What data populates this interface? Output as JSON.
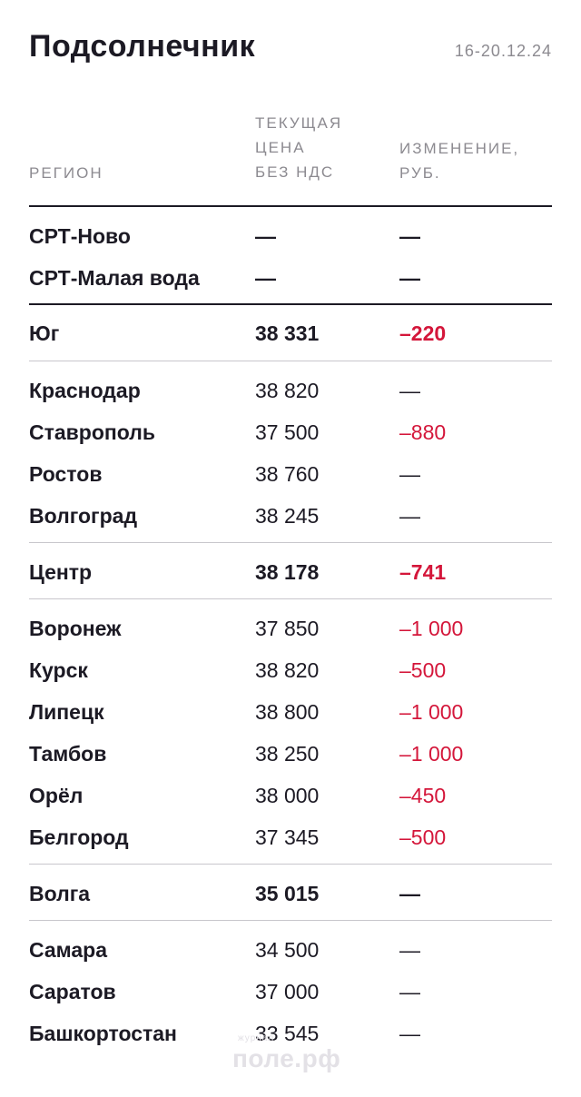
{
  "title": "Подсолнечник",
  "date": "16-20.12.24",
  "headers": {
    "region": "РЕГИОН",
    "price": [
      "ТЕКУЩАЯ",
      "ЦЕНА",
      "БЕЗ НДС"
    ],
    "change": [
      "ИЗМЕНЕНИЕ,",
      "РУБ."
    ]
  },
  "rows": [
    {
      "name": "СРТ-Ново",
      "price": "—",
      "change": "—"
    },
    {
      "name": "СРТ-Малая вода",
      "price": "—",
      "change": "—"
    },
    {
      "name": "Юг",
      "price": "38 331",
      "change": "–220"
    },
    {
      "name": "Краснодар",
      "price": "38 820",
      "change": "—"
    },
    {
      "name": "Ставрополь",
      "price": "37 500",
      "change": "–880"
    },
    {
      "name": "Ростов",
      "price": "38 760",
      "change": "—"
    },
    {
      "name": "Волгоград",
      "price": "38 245",
      "change": "—"
    },
    {
      "name": "Центр",
      "price": "38 178",
      "change": "–741"
    },
    {
      "name": "Воронеж",
      "price": "37 850",
      "change": "–1 000"
    },
    {
      "name": "Курск",
      "price": "38 820",
      "change": "–500"
    },
    {
      "name": "Липецк",
      "price": "38 800",
      "change": "–1 000"
    },
    {
      "name": "Тамбов",
      "price": "38 250",
      "change": "–1 000"
    },
    {
      "name": "Орёл",
      "price": "38 000",
      "change": "–450"
    },
    {
      "name": "Белгород",
      "price": "37 345",
      "change": "–500"
    },
    {
      "name": "Волга",
      "price": "35 015",
      "change": "—"
    },
    {
      "name": "Самара",
      "price": "34 500",
      "change": "—"
    },
    {
      "name": "Саратов",
      "price": "37 000",
      "change": "—"
    },
    {
      "name": "Башкортостан",
      "price": "33 545",
      "change": "—"
    }
  ],
  "watermark": {
    "small": "журнал",
    "main": "поле.рф"
  },
  "colors": {
    "text": "#1c1a24",
    "muted": "#8c8a90",
    "negative": "#d4163a",
    "rule": "#c8c6cc"
  }
}
